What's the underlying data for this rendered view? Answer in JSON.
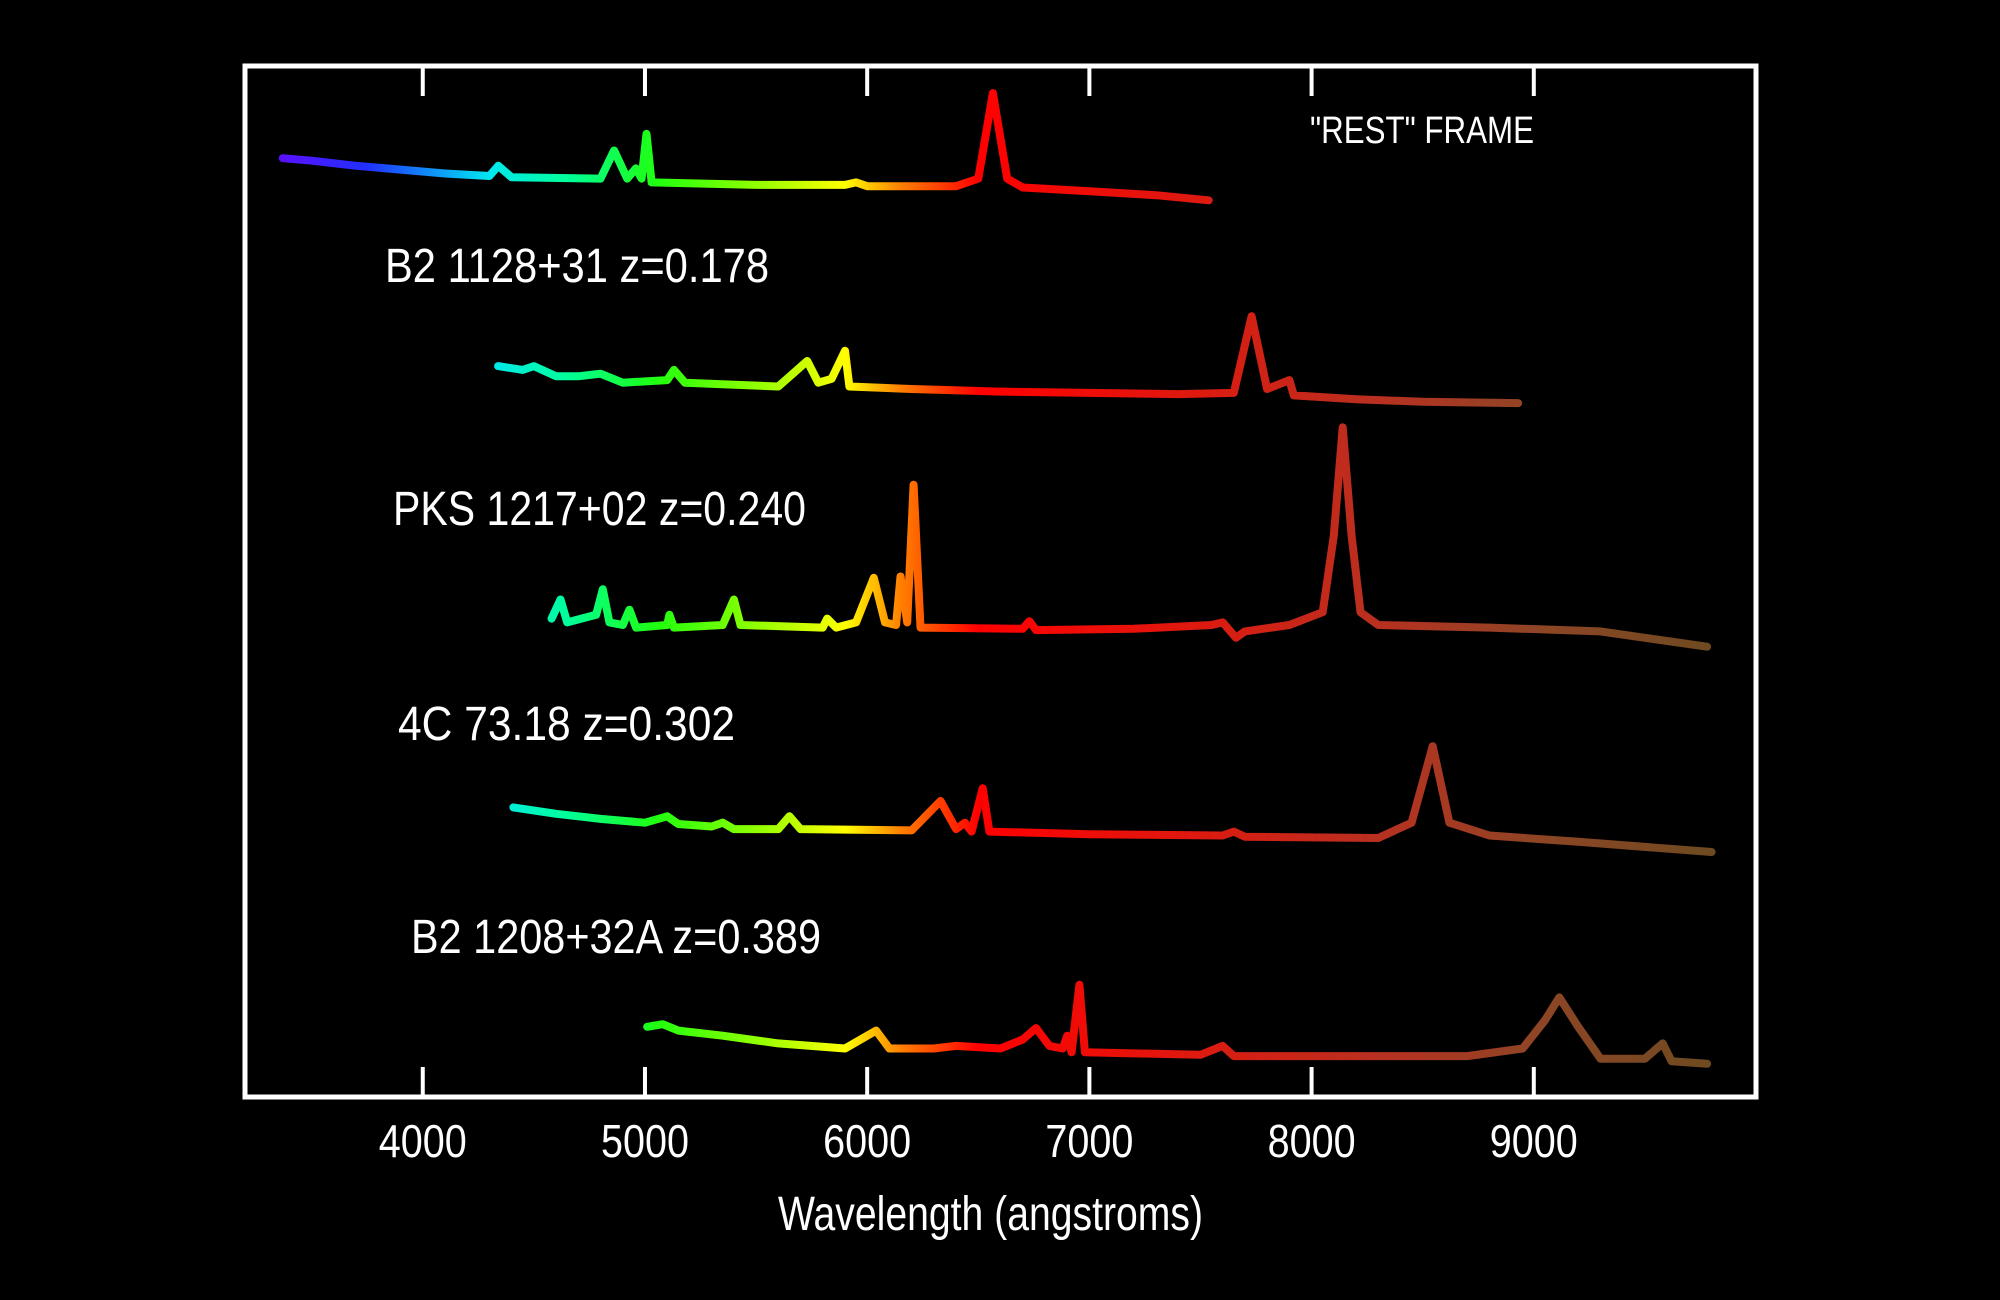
{
  "chart_data": {
    "type": "line",
    "title": "",
    "xlabel": "Wavelength (angstroms)",
    "ylabel": "",
    "xlim": [
      3200,
      10000
    ],
    "xticks": [
      4000,
      5000,
      6000,
      7000,
      8000,
      9000
    ],
    "xtick_labels": [
      "4000",
      "5000",
      "6000",
      "7000",
      "8000",
      "9000"
    ],
    "grid": false,
    "background": "#000000",
    "frame_color": "#ffffff",
    "annotation": "\"REST\" FRAME",
    "color_by_wavelength": [
      [
        3350,
        "#5a10ff"
      ],
      [
        3750,
        "#2030ff"
      ],
      [
        4300,
        "#00e8f0"
      ],
      [
        4650,
        "#00ff99"
      ],
      [
        5050,
        "#20ff10"
      ],
      [
        5500,
        "#90ff00"
      ],
      [
        5900,
        "#ffff00"
      ],
      [
        6150,
        "#ff8000"
      ],
      [
        6500,
        "#ff0000"
      ],
      [
        7500,
        "#dd1a10"
      ],
      [
        8300,
        "#b83020"
      ],
      [
        9000,
        "#8f4525"
      ],
      [
        9800,
        "#6e4a20"
      ]
    ],
    "series": [
      {
        "name": "",
        "z": 0,
        "points": [
          [
            3370,
            36
          ],
          [
            3500,
            34
          ],
          [
            3700,
            30
          ],
          [
            3900,
            27
          ],
          [
            4100,
            24
          ],
          [
            4300,
            22
          ],
          [
            4340,
            30
          ],
          [
            4400,
            21
          ],
          [
            4800,
            20
          ],
          [
            4861,
            42
          ],
          [
            4920,
            20
          ],
          [
            4959,
            28
          ],
          [
            4985,
            20
          ],
          [
            5007,
            55
          ],
          [
            5030,
            17
          ],
          [
            5500,
            15
          ],
          [
            5900,
            15
          ],
          [
            5950,
            17
          ],
          [
            6000,
            14
          ],
          [
            6400,
            14
          ],
          [
            6500,
            20
          ],
          [
            6566,
            87
          ],
          [
            6630,
            20
          ],
          [
            6700,
            13
          ],
          [
            7000,
            10
          ],
          [
            7300,
            7
          ],
          [
            7537,
            3
          ]
        ]
      },
      {
        "name": "B2 1128+31  z=0.178",
        "z": 0.178,
        "points": [
          [
            4339,
            33
          ],
          [
            4450,
            30
          ],
          [
            4500,
            33
          ],
          [
            4600,
            25
          ],
          [
            4700,
            25
          ],
          [
            4800,
            27
          ],
          [
            4900,
            20
          ],
          [
            5100,
            22
          ],
          [
            5130,
            30
          ],
          [
            5180,
            20
          ],
          [
            5600,
            17
          ],
          [
            5730,
            37
          ],
          [
            5780,
            20
          ],
          [
            5840,
            23
          ],
          [
            5900,
            45
          ],
          [
            5920,
            17
          ],
          [
            6200,
            15
          ],
          [
            6600,
            13
          ],
          [
            7000,
            12
          ],
          [
            7400,
            11
          ],
          [
            7650,
            12
          ],
          [
            7730,
            72
          ],
          [
            7800,
            15
          ],
          [
            7900,
            22
          ],
          [
            7920,
            10
          ],
          [
            8200,
            7
          ],
          [
            8500,
            5
          ],
          [
            8930,
            4
          ]
        ]
      },
      {
        "name": "PKS 1217+02  z=0.240",
        "z": 0.24,
        "points": [
          [
            4580,
            25
          ],
          [
            4620,
            40
          ],
          [
            4650,
            22
          ],
          [
            4780,
            28
          ],
          [
            4810,
            48
          ],
          [
            4840,
            22
          ],
          [
            4900,
            20
          ],
          [
            4930,
            32
          ],
          [
            4960,
            18
          ],
          [
            5100,
            20
          ],
          [
            5110,
            28
          ],
          [
            5130,
            18
          ],
          [
            5350,
            20
          ],
          [
            5400,
            40
          ],
          [
            5430,
            20
          ],
          [
            5800,
            18
          ],
          [
            5820,
            25
          ],
          [
            5860,
            18
          ],
          [
            5950,
            22
          ],
          [
            6030,
            57
          ],
          [
            6080,
            22
          ],
          [
            6130,
            20
          ],
          [
            6150,
            58
          ],
          [
            6180,
            22
          ],
          [
            6209,
            130
          ],
          [
            6240,
            18
          ],
          [
            6700,
            17
          ],
          [
            6730,
            23
          ],
          [
            6760,
            16
          ],
          [
            7200,
            17
          ],
          [
            7550,
            20
          ],
          [
            7600,
            22
          ],
          [
            7660,
            10
          ],
          [
            7700,
            15
          ],
          [
            7900,
            20
          ],
          [
            8050,
            30
          ],
          [
            8100,
            90
          ],
          [
            8140,
            175
          ],
          [
            8180,
            90
          ],
          [
            8220,
            30
          ],
          [
            8300,
            20
          ],
          [
            8800,
            18
          ],
          [
            9300,
            15
          ],
          [
            9500,
            10
          ],
          [
            9780,
            3
          ]
        ]
      },
      {
        "name": "4C 73.18  z=0.302",
        "z": 0.302,
        "points": [
          [
            4408,
            37
          ],
          [
            4600,
            32
          ],
          [
            4700,
            30
          ],
          [
            4800,
            28
          ],
          [
            5000,
            25
          ],
          [
            5100,
            30
          ],
          [
            5150,
            24
          ],
          [
            5300,
            22
          ],
          [
            5350,
            25
          ],
          [
            5400,
            20
          ],
          [
            5600,
            20
          ],
          [
            5650,
            30
          ],
          [
            5700,
            20
          ],
          [
            6200,
            19
          ],
          [
            6330,
            42
          ],
          [
            6400,
            20
          ],
          [
            6440,
            25
          ],
          [
            6470,
            18
          ],
          [
            6520,
            52
          ],
          [
            6550,
            18
          ],
          [
            7000,
            16
          ],
          [
            7600,
            15
          ],
          [
            7650,
            18
          ],
          [
            7700,
            14
          ],
          [
            8300,
            13
          ],
          [
            8450,
            25
          ],
          [
            8545,
            85
          ],
          [
            8620,
            25
          ],
          [
            8800,
            15
          ],
          [
            9200,
            10
          ],
          [
            9800,
            2
          ]
        ]
      },
      {
        "name": "B2 1208+32A  z=0.389",
        "z": 0.389,
        "points": [
          [
            5010,
            35
          ],
          [
            5080,
            37
          ],
          [
            5150,
            32
          ],
          [
            5350,
            28
          ],
          [
            5600,
            22
          ],
          [
            5900,
            18
          ],
          [
            6040,
            32
          ],
          [
            6100,
            18
          ],
          [
            6300,
            18
          ],
          [
            6400,
            20
          ],
          [
            6600,
            18
          ],
          [
            6700,
            25
          ],
          [
            6760,
            34
          ],
          [
            6820,
            20
          ],
          [
            6880,
            18
          ],
          [
            6900,
            28
          ],
          [
            6920,
            15
          ],
          [
            6955,
            68
          ],
          [
            6980,
            15
          ],
          [
            7500,
            13
          ],
          [
            7600,
            20
          ],
          [
            7650,
            12
          ],
          [
            8200,
            12
          ],
          [
            8700,
            12
          ],
          [
            8950,
            18
          ],
          [
            9050,
            40
          ],
          [
            9115,
            58
          ],
          [
            9200,
            35
          ],
          [
            9300,
            10
          ],
          [
            9500,
            10
          ],
          [
            9580,
            22
          ],
          [
            9620,
            8
          ],
          [
            9780,
            6
          ]
        ]
      }
    ]
  }
}
